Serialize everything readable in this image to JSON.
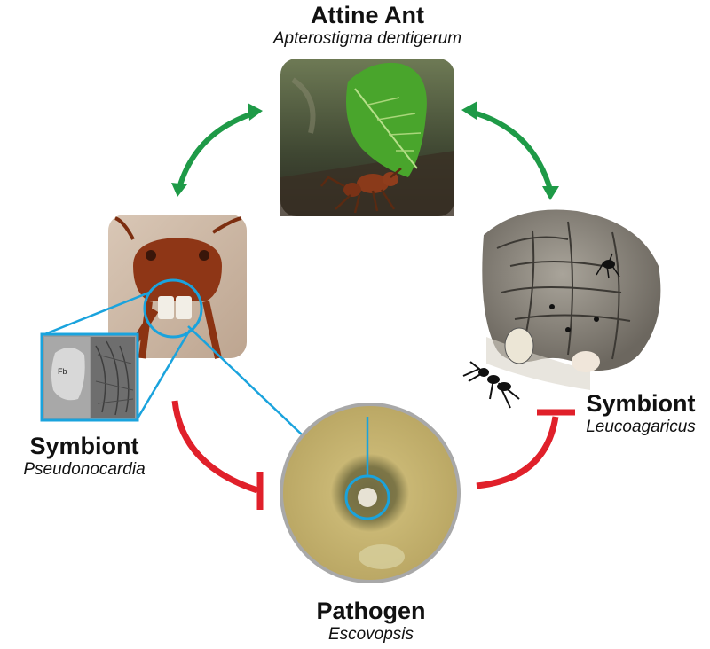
{
  "nodes": {
    "ant": {
      "title": "Attine Ant",
      "species": "Apterostigma dentigerum"
    },
    "symbiont_left": {
      "title": "Symbiont",
      "species": "Pseudonocardia",
      "micro_label": "Fb"
    },
    "symbiont_right": {
      "title": "Symbiont",
      "species": "Leucoagaricus"
    },
    "pathogen": {
      "title": "Pathogen",
      "species": "Escovopsis"
    }
  },
  "colors": {
    "mutualism_arrow": "#1e9a47",
    "inhibition_arrow": "#e0202a",
    "highlight": "#1aa3dd"
  },
  "icons": [
    "leaf-cutter-ant-photo",
    "ant-head-closeup-photo",
    "microscopy-inset",
    "fungus-garden-illustration",
    "petri-dish-photo"
  ]
}
